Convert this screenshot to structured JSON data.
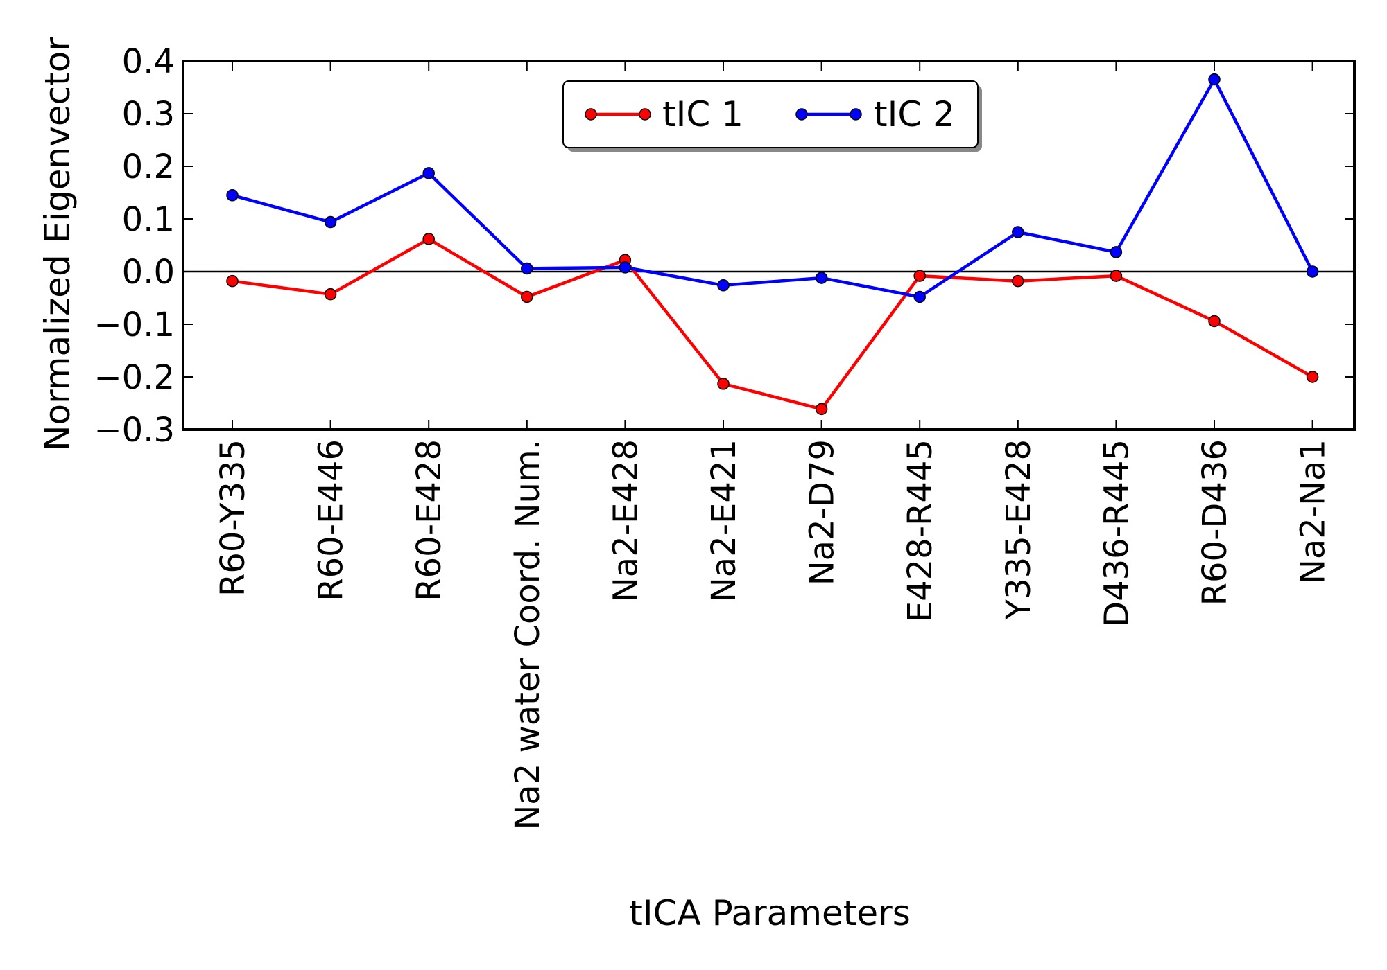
{
  "chart_data": {
    "type": "line",
    "title": "",
    "xlabel": "tICA Parameters",
    "ylabel": "Normalized Eigenvector",
    "categories": [
      "R60-Y335",
      "R60-E446",
      "R60-E428",
      "Na2 water Coord. Num.",
      "Na2-E428",
      "Na2-E421",
      "Na2-D79",
      "E428-R445",
      "Y335-E428",
      "D436-R445",
      "R60-D436",
      "Na2-Na1"
    ],
    "ylim": [
      -0.3,
      0.4
    ],
    "yticks": [
      0.4,
      0.3,
      0.2,
      0.1,
      0.0,
      -0.1,
      -0.2,
      -0.3
    ],
    "ytick_labels": [
      "0.4",
      "0.3",
      "0.2",
      "0.1",
      "0.0",
      "−0.1",
      "−0.2",
      "−0.3"
    ],
    "zero_line": true,
    "grid": false,
    "legend_position": "top-center",
    "series": [
      {
        "name": "tIC 1",
        "color": "#ff0000",
        "values": [
          -0.018,
          -0.043,
          0.062,
          -0.048,
          0.022,
          -0.213,
          -0.261,
          -0.008,
          -0.018,
          -0.008,
          -0.094,
          -0.2
        ]
      },
      {
        "name": "tIC 2",
        "color": "#0000ff",
        "values": [
          0.145,
          0.094,
          0.187,
          0.006,
          0.008,
          -0.026,
          -0.012,
          -0.048,
          0.075,
          0.037,
          0.365,
          0.0
        ]
      }
    ]
  }
}
